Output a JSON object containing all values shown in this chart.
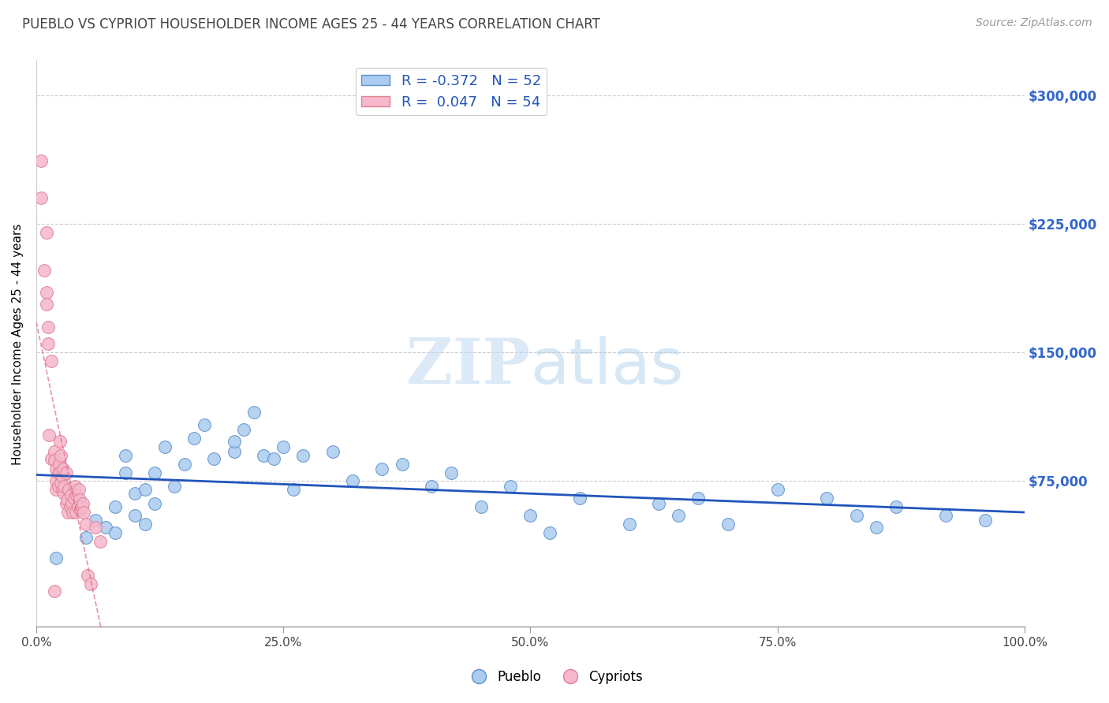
{
  "title": "PUEBLO VS CYPRIOT HOUSEHOLDER INCOME AGES 25 - 44 YEARS CORRELATION CHART",
  "source": "Source: ZipAtlas.com",
  "ylabel": "Householder Income Ages 25 - 44 years",
  "xlim": [
    0.0,
    1.0
  ],
  "ylim": [
    -10000,
    320000
  ],
  "yticks": [
    75000,
    150000,
    225000,
    300000
  ],
  "ytick_labels": [
    "$75,000",
    "$150,000",
    "$225,000",
    "$300,000"
  ],
  "xtick_labels": [
    "0.0%",
    "25.0%",
    "50.0%",
    "75.0%",
    "100.0%"
  ],
  "xticks": [
    0.0,
    0.25,
    0.5,
    0.75,
    1.0
  ],
  "legend_blue_label": "R = -0.372   N = 52",
  "legend_pink_label": "R =  0.047   N = 54",
  "pueblo_color": "#aaccf0",
  "cypriot_color": "#f5b8cc",
  "pueblo_edge": "#6090c8",
  "cypriot_edge": "#e08090",
  "trend_blue_color": "#2255bb",
  "trend_pink_color": "#dd6688",
  "pueblo_x": [
    0.02,
    0.05,
    0.06,
    0.07,
    0.08,
    0.08,
    0.09,
    0.09,
    0.1,
    0.1,
    0.11,
    0.11,
    0.12,
    0.12,
    0.13,
    0.14,
    0.15,
    0.16,
    0.17,
    0.18,
    0.2,
    0.2,
    0.21,
    0.22,
    0.23,
    0.24,
    0.25,
    0.26,
    0.27,
    0.3,
    0.32,
    0.35,
    0.37,
    0.4,
    0.42,
    0.45,
    0.48,
    0.5,
    0.52,
    0.55,
    0.6,
    0.63,
    0.65,
    0.67,
    0.7,
    0.75,
    0.8,
    0.83,
    0.85,
    0.87,
    0.92,
    0.96
  ],
  "pueblo_y": [
    30000,
    42000,
    52000,
    48000,
    45000,
    60000,
    80000,
    90000,
    68000,
    55000,
    70000,
    50000,
    62000,
    80000,
    95000,
    72000,
    85000,
    100000,
    108000,
    88000,
    92000,
    98000,
    105000,
    115000,
    90000,
    88000,
    95000,
    70000,
    90000,
    92000,
    75000,
    82000,
    85000,
    72000,
    80000,
    60000,
    72000,
    55000,
    45000,
    65000,
    50000,
    62000,
    55000,
    65000,
    50000,
    70000,
    65000,
    55000,
    48000,
    60000,
    55000,
    52000
  ],
  "cypriot_x": [
    0.005,
    0.005,
    0.008,
    0.01,
    0.01,
    0.01,
    0.012,
    0.012,
    0.013,
    0.015,
    0.015,
    0.018,
    0.018,
    0.02,
    0.02,
    0.02,
    0.022,
    0.022,
    0.023,
    0.024,
    0.024,
    0.025,
    0.025,
    0.026,
    0.026,
    0.027,
    0.028,
    0.028,
    0.03,
    0.03,
    0.031,
    0.032,
    0.033,
    0.034,
    0.035,
    0.036,
    0.037,
    0.038,
    0.039,
    0.04,
    0.041,
    0.042,
    0.043,
    0.044,
    0.045,
    0.046,
    0.047,
    0.048,
    0.05,
    0.052,
    0.055,
    0.06,
    0.065,
    0.018
  ],
  "cypriot_y": [
    262000,
    240000,
    198000,
    185000,
    220000,
    178000,
    165000,
    155000,
    102000,
    145000,
    88000,
    92000,
    87000,
    82000,
    75000,
    70000,
    80000,
    72000,
    85000,
    98000,
    80000,
    90000,
    74000,
    70000,
    78000,
    82000,
    68000,
    72000,
    80000,
    62000,
    64000,
    57000,
    70000,
    60000,
    67000,
    62000,
    57000,
    65000,
    72000,
    57000,
    67000,
    60000,
    70000,
    64000,
    58000,
    60000,
    62000,
    57000,
    50000,
    20000,
    15000,
    48000,
    40000,
    11000
  ]
}
